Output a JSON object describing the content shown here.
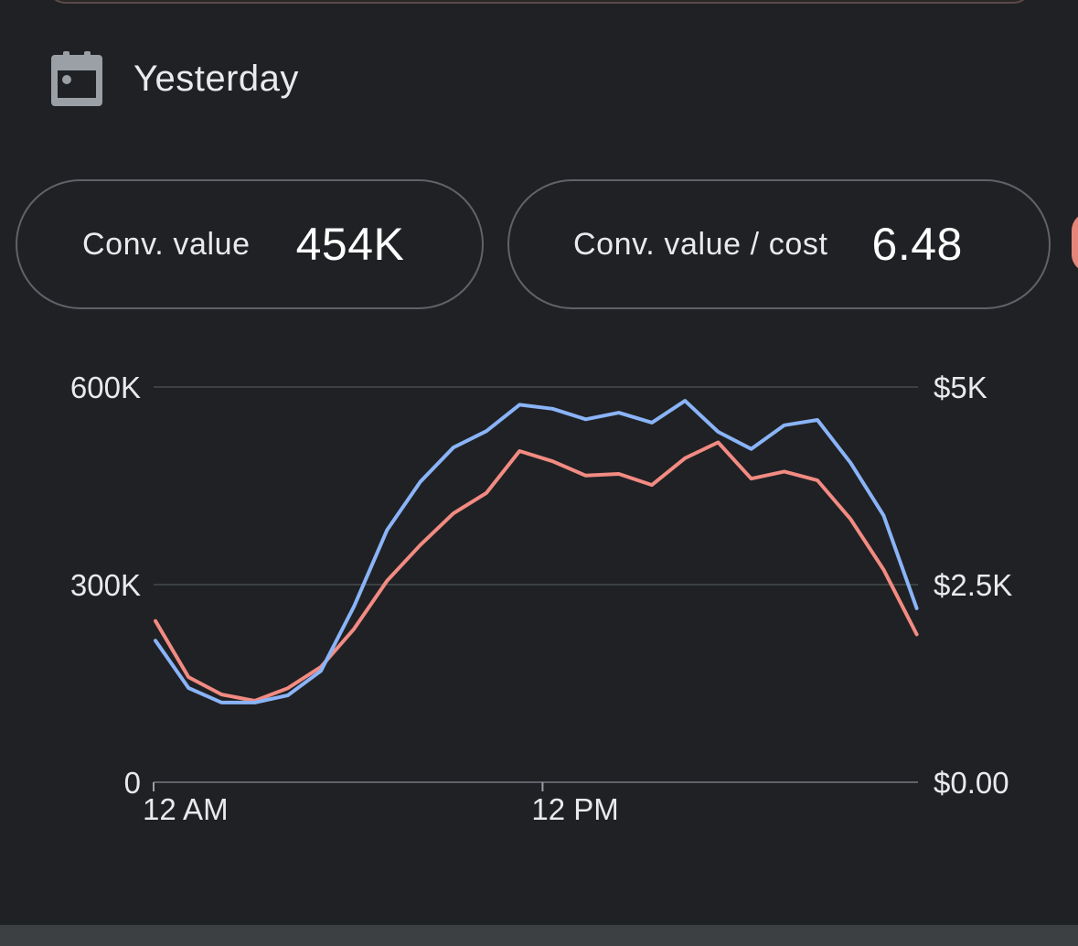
{
  "date_range": {
    "label": "Yesterday",
    "icon": "calendar-icon"
  },
  "metrics": [
    {
      "label": "Conv. value",
      "value": "454K"
    },
    {
      "label": "Conv. value / cost",
      "value": "6.48"
    }
  ],
  "colors": {
    "background": "#202124",
    "blue_series": "#8ab4f8",
    "red_series": "#f28b82",
    "third_chip": "#e8857a"
  },
  "chart_data": {
    "type": "line",
    "x": [
      "12 AM",
      "1 AM",
      "2 AM",
      "3 AM",
      "4 AM",
      "5 AM",
      "6 AM",
      "7 AM",
      "8 AM",
      "9 AM",
      "10 AM",
      "11 AM",
      "12 PM",
      "1 PM",
      "2 PM",
      "3 PM",
      "4 PM",
      "5 PM",
      "6 PM",
      "7 PM",
      "8 PM",
      "9 PM",
      "10 PM",
      "11 PM"
    ],
    "x_ticks": [
      "12 AM",
      "12 PM"
    ],
    "left_axis": {
      "ticks": [
        "0",
        "300K",
        "600K"
      ],
      "ylim": [
        0,
        600000
      ]
    },
    "right_axis": {
      "ticks": [
        "$0.00",
        "$2.5K",
        "$5K"
      ],
      "ylim": [
        0,
        5000
      ]
    },
    "grid": true,
    "series": [
      {
        "axis": "left",
        "color": "#8ab4f8",
        "values": [
          215000,
          143000,
          121000,
          121000,
          132000,
          169000,
          267000,
          383000,
          456000,
          508000,
          533000,
          573000,
          567000,
          551000,
          561000,
          546000,
          579000,
          532000,
          506000,
          542000,
          550000,
          485000,
          405000,
          264000
        ]
      },
      {
        "axis": "right",
        "color": "#f28b82",
        "values": [
          2040,
          1330,
          1110,
          1030,
          1190,
          1460,
          1940,
          2550,
          3000,
          3400,
          3660,
          4190,
          4060,
          3880,
          3900,
          3760,
          4100,
          4300,
          3840,
          3930,
          3820,
          3330,
          2690,
          1870
        ]
      }
    ]
  }
}
